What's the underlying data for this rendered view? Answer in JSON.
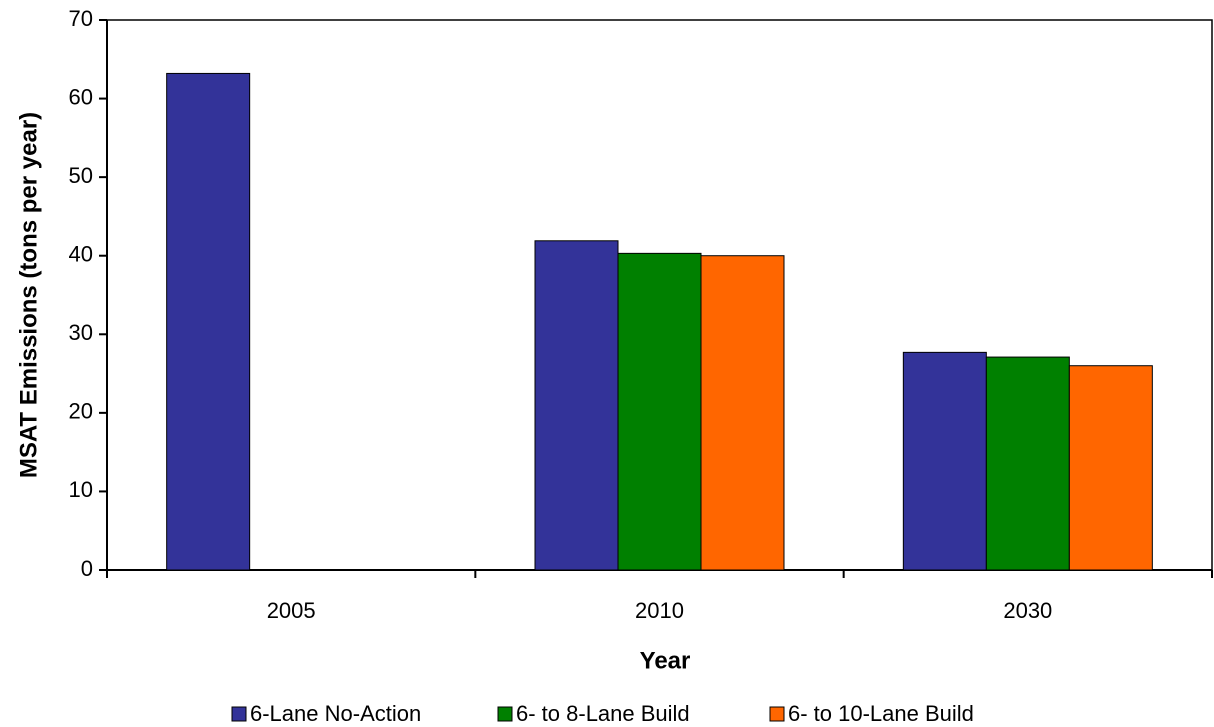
{
  "chart_data": {
    "type": "bar",
    "x_label": "Year",
    "y_label": "MSAT Emissions (tons per year)",
    "categories": [
      "2005",
      "2010",
      "2030"
    ],
    "series": [
      {
        "name": "6-Lane No-Action",
        "color": "#333399",
        "values": [
          63.2,
          41.9,
          27.7
        ]
      },
      {
        "name": "6- to 8-Lane Build",
        "color": "#008000",
        "values": [
          null,
          40.3,
          27.1
        ]
      },
      {
        "name": "6- to 10-Lane Build",
        "color": "#ff6600",
        "values": [
          null,
          40.0,
          26.0
        ]
      }
    ],
    "ylim": [
      0,
      70
    ],
    "yticks": [
      0,
      10,
      20,
      30,
      40,
      50,
      60,
      70
    ],
    "grid": false,
    "legend": "bottom"
  }
}
